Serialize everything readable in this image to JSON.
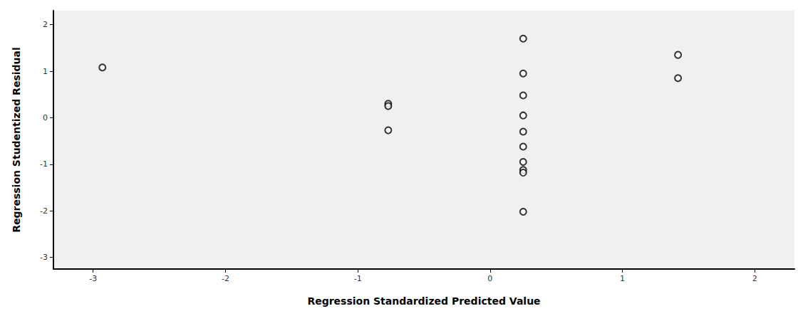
{
  "chart_data": {
    "type": "scatter",
    "xlabel": "Regression Standardized Predicted Value",
    "ylabel": "Regression Studentized Residual",
    "x": [
      -2.93,
      -0.77,
      -0.77,
      -0.77,
      0.25,
      0.25,
      0.25,
      0.25,
      0.25,
      0.25,
      0.25,
      0.25,
      0.25,
      0.25,
      1.42,
      1.42
    ],
    "values": [
      1.08,
      0.3,
      0.25,
      -0.27,
      1.7,
      0.95,
      0.48,
      0.05,
      -0.3,
      -0.62,
      -0.95,
      -1.12,
      -1.18,
      -2.02,
      1.35,
      0.85
    ],
    "color": "#000000",
    "marker": "open_circle",
    "xlim": [
      -3.3,
      2.3
    ],
    "xticks": [
      -3,
      -2,
      -1,
      0,
      1,
      2
    ],
    "ylim": [
      -3.25,
      2.3
    ],
    "yticks": [
      -3,
      -2,
      -1,
      0,
      1,
      2
    ],
    "grid": false
  }
}
